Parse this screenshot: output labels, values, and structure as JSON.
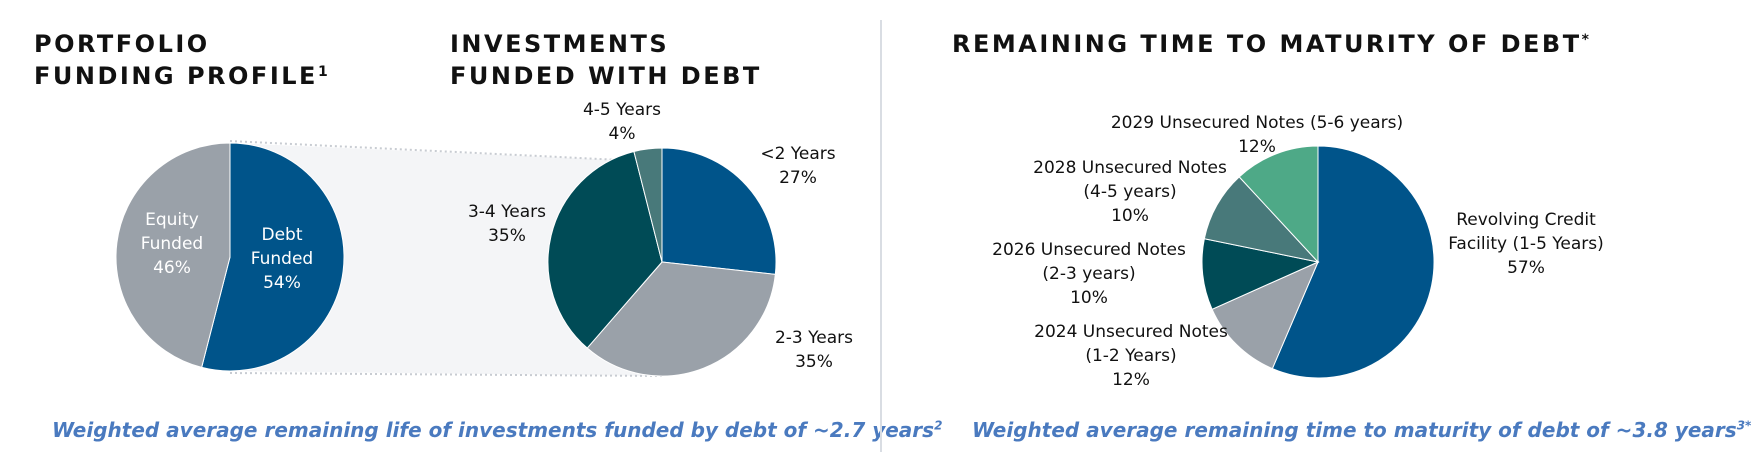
{
  "left_section": {
    "title_portfolio": {
      "line1": "PORTFOLIO",
      "line2": "FUNDING PROFILE",
      "footnote": "1"
    },
    "title_investments": {
      "line1": "INVESTMENTS",
      "line2": "FUNDED WITH DEBT"
    },
    "footer": {
      "text": "Weighted average remaining life of investments funded by debt of ~2.7 years",
      "footnote": "2"
    }
  },
  "right_section": {
    "title": {
      "text": "REMAINING TIME TO MATURITY OF DEBT",
      "footnote": "*"
    },
    "footer": {
      "text": "Weighted average remaining time to maturity of debt of ~3.8 years",
      "footnote": "3*"
    }
  },
  "chart_data": [
    {
      "type": "pie",
      "title": "PORTFOLIO FUNDING PROFILE",
      "slices": [
        {
          "label": [
            "Debt",
            "Funded"
          ],
          "percent_label": "54%",
          "value": 54,
          "color": "#00548a",
          "label_color": "#ffffff"
        },
        {
          "label": [
            "Equity",
            "Funded"
          ],
          "percent_label": "46%",
          "value": 46,
          "color": "#9aa1a9",
          "label_color": "#ffffff"
        }
      ]
    },
    {
      "type": "pie",
      "title": "INVESTMENTS FUNDED WITH DEBT",
      "slices": [
        {
          "label": [
            "<2 Years"
          ],
          "percent_label": "27%",
          "value": 27,
          "color": "#00548a",
          "label_color": "#111111"
        },
        {
          "label": [
            "2-3 Years"
          ],
          "percent_label": "35%",
          "value": 35,
          "color": "#9aa1a9",
          "label_color": "#111111"
        },
        {
          "label": [
            "3-4 Years"
          ],
          "percent_label": "35%",
          "value": 35,
          "color": "#004b56",
          "label_color": "#111111"
        },
        {
          "label": [
            "4-5 Years"
          ],
          "percent_label": "4%",
          "value": 4,
          "color": "#48797a",
          "label_color": "#111111"
        }
      ]
    },
    {
      "type": "pie",
      "title": "REMAINING TIME TO MATURITY OF DEBT",
      "slices": [
        {
          "label": [
            "Revolving Credit",
            "Facility (1-5 Years)"
          ],
          "percent_label": "57%",
          "value": 57,
          "color": "#00548a",
          "label_color": "#111111"
        },
        {
          "label": [
            "2024 Unsecured Notes",
            "(1-2 Years)"
          ],
          "percent_label": "12%",
          "value": 12,
          "color": "#9aa1a9",
          "label_color": "#111111"
        },
        {
          "label": [
            "2026 Unsecured Notes",
            "(2-3 years)"
          ],
          "percent_label": "10%",
          "value": 10,
          "color": "#004b56",
          "label_color": "#111111"
        },
        {
          "label": [
            "2028 Unsecured Notes",
            "(4-5 years)"
          ],
          "percent_label": "10%",
          "value": 10,
          "color": "#48797a",
          "label_color": "#111111"
        },
        {
          "label": [
            "2029 Unsecured Notes (5-6 years)"
          ],
          "percent_label": "12%",
          "value": 12,
          "color": "#4ea987",
          "label_color": "#111111"
        }
      ]
    }
  ]
}
